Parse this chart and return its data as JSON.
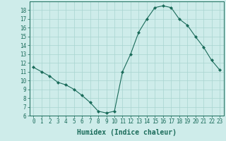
{
  "x": [
    0,
    1,
    2,
    3,
    4,
    5,
    6,
    7,
    8,
    9,
    10,
    11,
    12,
    13,
    14,
    15,
    16,
    17,
    18,
    19,
    20,
    21,
    22,
    23
  ],
  "y": [
    11.5,
    11.0,
    10.5,
    9.8,
    9.5,
    9.0,
    8.3,
    7.5,
    6.5,
    6.3,
    6.5,
    11.0,
    13.0,
    15.5,
    17.0,
    18.3,
    18.5,
    18.3,
    17.0,
    16.3,
    15.0,
    13.8,
    12.3,
    11.2
  ],
  "xlabel": "Humidex (Indice chaleur)",
  "ylim": [
    6,
    19
  ],
  "xlim": [
    -0.5,
    23.5
  ],
  "yticks": [
    6,
    7,
    8,
    9,
    10,
    11,
    12,
    13,
    14,
    15,
    16,
    17,
    18
  ],
  "xticks": [
    0,
    1,
    2,
    3,
    4,
    5,
    6,
    7,
    8,
    9,
    10,
    11,
    12,
    13,
    14,
    15,
    16,
    17,
    18,
    19,
    20,
    21,
    22,
    23
  ],
  "line_color": "#1a6b5a",
  "marker": "D",
  "marker_size": 2.0,
  "bg_color": "#ceecea",
  "grid_color": "#a8d5d0",
  "axes_color": "#1a6b5a",
  "xlabel_fontsize": 7,
  "tick_fontsize": 5.5
}
